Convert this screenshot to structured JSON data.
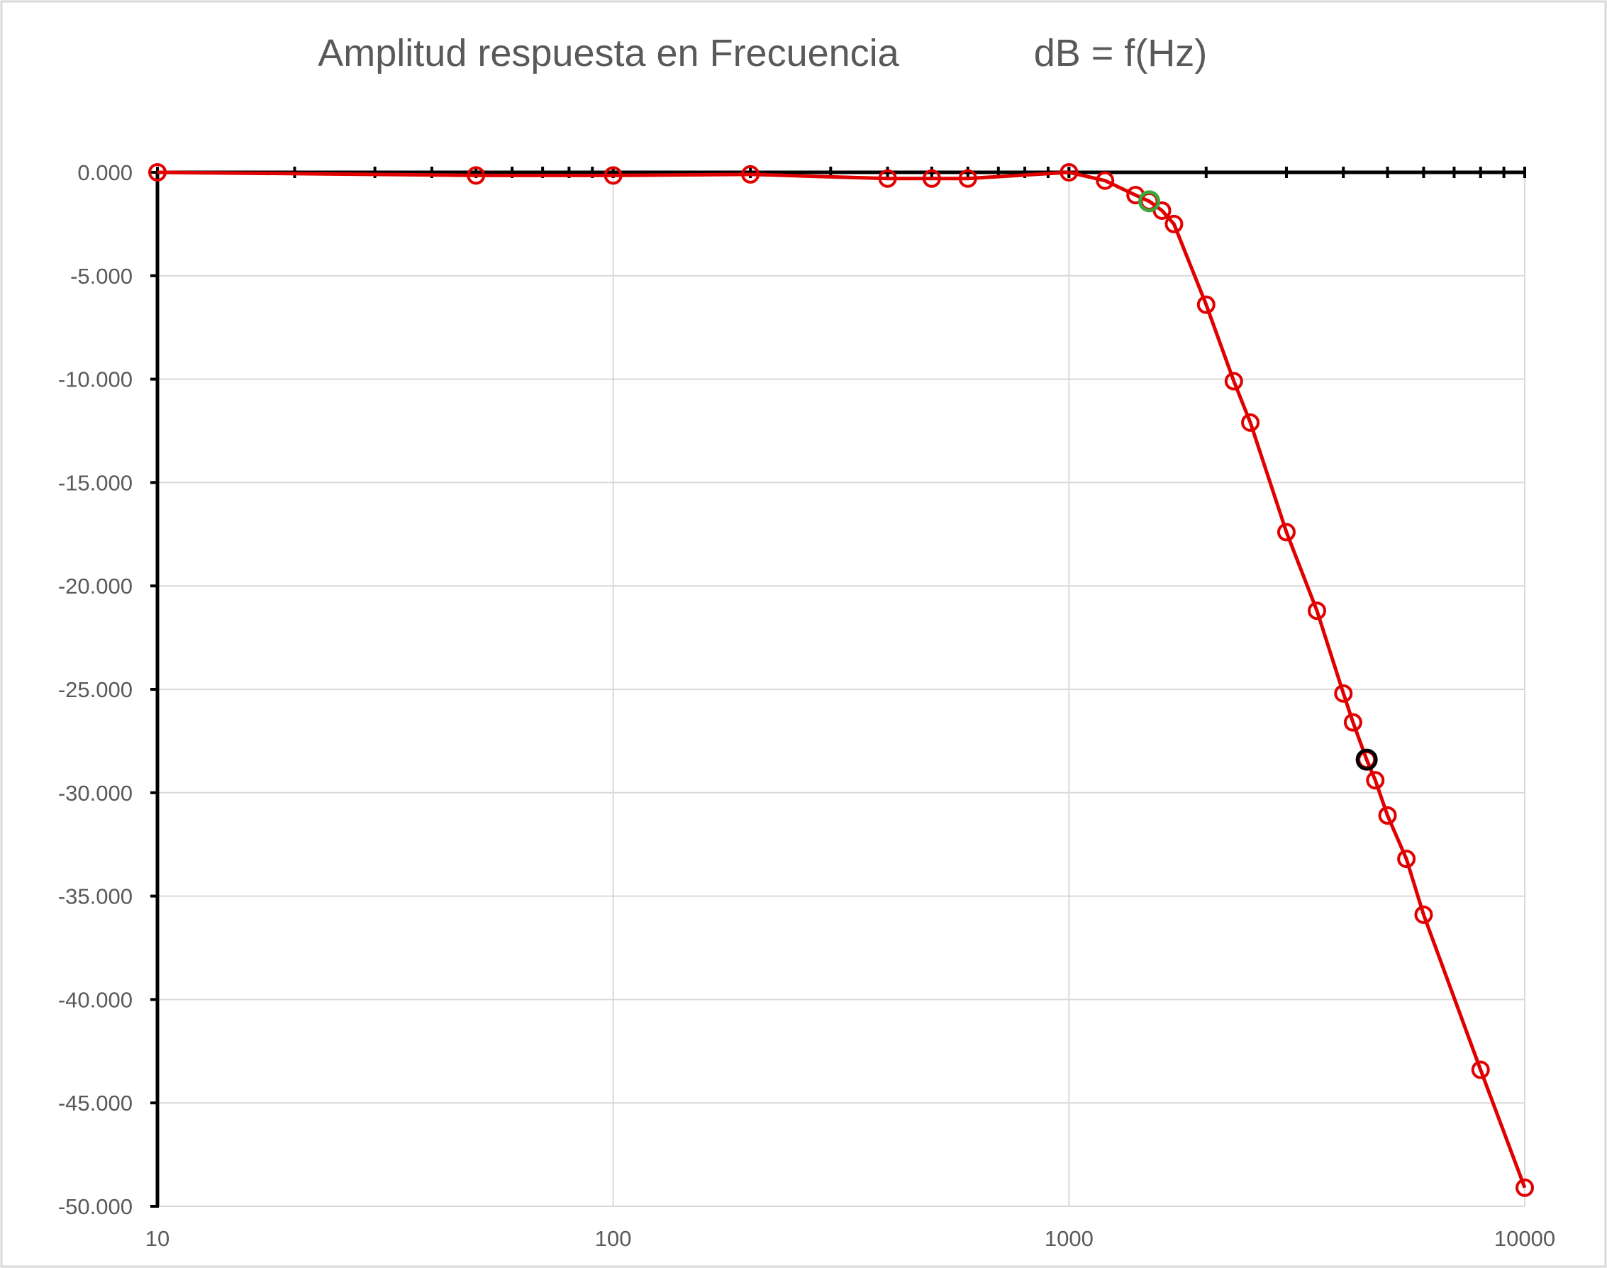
{
  "chart_data": {
    "type": "line",
    "title": "Amplitud respuesta en Frecuencia",
    "subtitle": "dB = f(Hz)",
    "xlabel": "",
    "ylabel": "",
    "x_scale": "log",
    "xlim": [
      10,
      10000
    ],
    "ylim": [
      -50,
      0
    ],
    "grid": true,
    "legend": "none",
    "x_tick_labels": [
      "10",
      "100",
      "1000",
      "10000"
    ],
    "y_tick_labels": [
      "0.000",
      "-5.000",
      "-10.000",
      "-15.000",
      "-20.000",
      "-25.000",
      "-30.000",
      "-35.000",
      "-40.000",
      "-45.000",
      "-50.000"
    ],
    "x_tick_values": [
      10,
      100,
      1000,
      10000
    ],
    "y_tick_values": [
      0,
      -5,
      -10,
      -15,
      -20,
      -25,
      -30,
      -35,
      -40,
      -45,
      -50
    ],
    "colors": {
      "line": "#e00000",
      "axis": "#000000",
      "grid": "#d9d9d9",
      "highlight_green": "#3aa53a",
      "highlight_black": "#000000"
    },
    "series": [
      {
        "x": [
          10,
          50,
          100,
          200,
          400,
          500,
          600,
          1000,
          1200,
          1400,
          1500,
          1600,
          1700,
          2000,
          2300,
          2500,
          3000,
          3500,
          4000,
          4200,
          4500,
          4700,
          5000,
          5500,
          6000,
          8000,
          10000
        ],
        "y": [
          0.0,
          -0.15,
          -0.15,
          -0.1,
          -0.3,
          -0.3,
          -0.3,
          0.0,
          -0.4,
          -1.1,
          -1.4,
          -1.85,
          -2.5,
          -6.4,
          -10.1,
          -12.1,
          -17.4,
          -21.2,
          -25.2,
          -26.6,
          -28.4,
          -29.4,
          -31.1,
          -33.2,
          -35.9,
          -43.4,
          -49.1
        ]
      }
    ],
    "highlight_points": [
      {
        "x": 1500,
        "y": -1.4,
        "color": "#3aa53a"
      },
      {
        "x": 4500,
        "y": -28.4,
        "color": "#000000"
      }
    ]
  }
}
